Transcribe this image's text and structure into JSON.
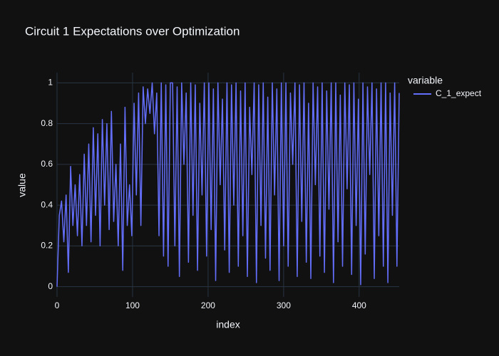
{
  "chart_data": {
    "type": "line",
    "title": "Circuit 1 Expectations over Optimization",
    "x_label": "index",
    "y_label": "value",
    "legend_title": "variable",
    "legend_position": "top-right",
    "grid": true,
    "xlim": [
      0,
      453
    ],
    "ylim": [
      -0.05,
      1.05
    ],
    "xticks": [
      0,
      100,
      200,
      300,
      400
    ],
    "yticks": [
      0,
      0.2,
      0.4,
      0.6,
      0.8,
      1
    ],
    "x": [
      0,
      3,
      6,
      9,
      12,
      15,
      18,
      21,
      24,
      27,
      30,
      33,
      36,
      39,
      42,
      45,
      48,
      51,
      54,
      57,
      60,
      63,
      66,
      69,
      72,
      75,
      78,
      81,
      84,
      87,
      90,
      93,
      96,
      99,
      102,
      105,
      108,
      111,
      114,
      117,
      120,
      123,
      126,
      129,
      132,
      135,
      138,
      141,
      144,
      147,
      150,
      153,
      156,
      159,
      162,
      165,
      168,
      171,
      174,
      177,
      180,
      183,
      186,
      189,
      192,
      195,
      198,
      201,
      204,
      207,
      210,
      213,
      216,
      219,
      222,
      225,
      228,
      231,
      234,
      237,
      240,
      243,
      246,
      249,
      252,
      255,
      258,
      261,
      264,
      267,
      270,
      273,
      276,
      279,
      282,
      285,
      288,
      291,
      294,
      297,
      300,
      303,
      306,
      309,
      312,
      315,
      318,
      321,
      324,
      327,
      330,
      333,
      336,
      339,
      342,
      345,
      348,
      351,
      354,
      357,
      360,
      363,
      366,
      369,
      372,
      375,
      378,
      381,
      384,
      387,
      390,
      393,
      396,
      399,
      402,
      405,
      408,
      411,
      414,
      417,
      420,
      423,
      426,
      429,
      432,
      435,
      438,
      441,
      444,
      447,
      450,
      453
    ],
    "series": [
      {
        "name": "C_1_expect",
        "color": "#636efa",
        "values": [
          0,
          0.35,
          0.42,
          0.22,
          0.45,
          0.07,
          0.59,
          0.3,
          0.5,
          0.25,
          0.55,
          0.2,
          0.65,
          0.3,
          0.7,
          0.22,
          0.78,
          0.35,
          0.75,
          0.2,
          0.82,
          0.4,
          0.8,
          0.28,
          0.86,
          0.32,
          0.6,
          0.2,
          0.7,
          0.08,
          0.88,
          0.3,
          0.5,
          0.25,
          0.9,
          0.45,
          0.95,
          0.3,
          0.98,
          0.8,
          0.97,
          0.85,
          1.0,
          0.75,
          0.95,
          0.25,
          1.0,
          0.15,
          0.99,
          0.1,
          1.0,
          1,
          0.2,
          0.98,
          0.05,
          1,
          0.6,
          0.95,
          0.12,
          1,
          0.35,
          0.99,
          0.08,
          0.9,
          0.45,
          1,
          0.15,
          1,
          0.28,
          0.97,
          0.03,
          1,
          0.5,
          0.92,
          0.18,
          1,
          0.07,
          0.99,
          0.4,
          1,
          0.1,
          0.96,
          0.25,
          1,
          0.05,
          0.88,
          0.55,
          1,
          0.02,
          0.99,
          0.3,
          1,
          0.14,
          0.93,
          0.08,
          1,
          0.45,
          0.97,
          0.03,
          1,
          0.2,
          1,
          0.1,
          0.95,
          0.6,
          1,
          0.05,
          0.99,
          0.32,
          1,
          0.12,
          0.9,
          0.04,
          1,
          0.5,
          0.98,
          0.15,
          1,
          0.07,
          0.96,
          0.38,
          1,
          0.02,
          1,
          0.22,
          0.94,
          0.1,
          1,
          0.48,
          0.99,
          0.06,
          1,
          0.3,
          0.92,
          0.01,
          1,
          0.16,
          0.98,
          0.55,
          1,
          0.04,
          0.97,
          0.25,
          1,
          0.1,
          1,
          0.02,
          0.95,
          0.35,
          1,
          0.1,
          0.95
        ]
      }
    ]
  }
}
